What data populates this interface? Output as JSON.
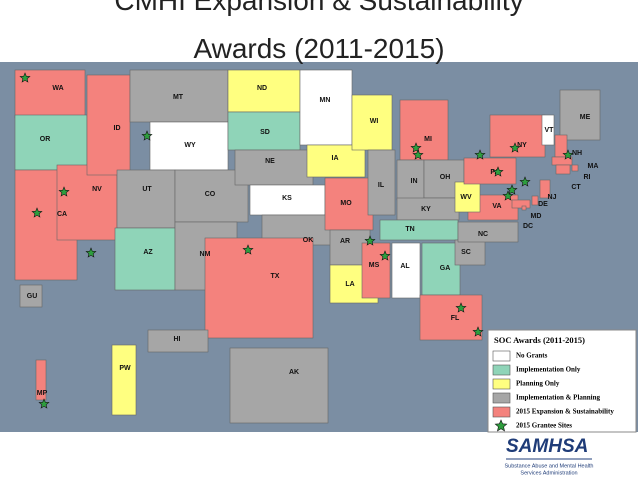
{
  "title": {
    "line1": "CMHI Expansion & Sustainability",
    "line2": "Awards (2011-2015)"
  },
  "map": {
    "background": "#7b8ea3",
    "states": [
      {
        "label": "WA",
        "color": "#f4827d"
      },
      {
        "label": "OR",
        "color": "#8fd4b8"
      },
      {
        "label": "CA",
        "color": "#f4827d"
      },
      {
        "label": "NV",
        "color": "#f4827d"
      },
      {
        "label": "ID",
        "color": "#f4827d"
      },
      {
        "label": "MT",
        "color": "#a6a6a6"
      },
      {
        "label": "WY",
        "color": "#ffffff"
      },
      {
        "label": "UT",
        "color": "#a6a6a6"
      },
      {
        "label": "CO",
        "color": "#a6a6a6"
      },
      {
        "label": "AZ",
        "color": "#8fd4b8"
      },
      {
        "label": "NM",
        "color": "#a6a6a6"
      },
      {
        "label": "ND",
        "color": "#ffff80"
      },
      {
        "label": "SD",
        "color": "#8fd4b8"
      },
      {
        "label": "NE",
        "color": "#a6a6a6"
      },
      {
        "label": "KS",
        "color": "#ffffff"
      },
      {
        "label": "OK",
        "color": "#a6a6a6"
      },
      {
        "label": "TX",
        "color": "#f4827d"
      },
      {
        "label": "MN",
        "color": "#ffffff"
      },
      {
        "label": "IA",
        "color": "#ffff80"
      },
      {
        "label": "MO",
        "color": "#f4827d"
      },
      {
        "label": "AR",
        "color": "#a6a6a6"
      },
      {
        "label": "LA",
        "color": "#ffff80"
      },
      {
        "label": "WI",
        "color": "#ffff80"
      },
      {
        "label": "IL",
        "color": "#a6a6a6"
      },
      {
        "label": "MI",
        "color": "#f4827d"
      },
      {
        "label": "IN",
        "color": "#a6a6a6"
      },
      {
        "label": "OH",
        "color": "#a6a6a6"
      },
      {
        "label": "KY",
        "color": "#a6a6a6"
      },
      {
        "label": "TN",
        "color": "#8fd4b8"
      },
      {
        "label": "MS",
        "color": "#f4827d"
      },
      {
        "label": "AL",
        "color": "#ffffff"
      },
      {
        "label": "GA",
        "color": "#8fd4b8"
      },
      {
        "label": "FL",
        "color": "#f4827d"
      },
      {
        "label": "SC",
        "color": "#a6a6a6"
      },
      {
        "label": "NC",
        "color": "#a6a6a6"
      },
      {
        "label": "VA",
        "color": "#f4827d"
      },
      {
        "label": "WV",
        "color": "#ffff80"
      },
      {
        "label": "PA",
        "color": "#f4827d"
      },
      {
        "label": "NY",
        "color": "#f4827d"
      },
      {
        "label": "ME",
        "color": "#a6a6a6"
      },
      {
        "label": "VT",
        "color": "#ffffff"
      },
      {
        "label": "NH",
        "color": "#f4827d"
      },
      {
        "label": "MA",
        "color": "#f4827d"
      },
      {
        "label": "RI",
        "color": "#f4827d"
      },
      {
        "label": "CT",
        "color": "#f4827d"
      },
      {
        "label": "NJ",
        "color": "#f4827d"
      },
      {
        "label": "DE",
        "color": "#f4827d"
      },
      {
        "label": "MD",
        "color": "#f4827d"
      },
      {
        "label": "DC",
        "color": "#f4827d"
      },
      {
        "label": "AK",
        "color": "#a6a6a6"
      },
      {
        "label": "HI",
        "color": "#a6a6a6"
      },
      {
        "label": "GU",
        "color": "#a6a6a6"
      },
      {
        "label": "PW",
        "color": "#ffff80"
      },
      {
        "label": "MP",
        "color": "#f4827d"
      }
    ]
  },
  "legend": {
    "title": "SOC Awards (2011-2015)",
    "items": [
      {
        "label": "No Grants",
        "color": "#ffffff"
      },
      {
        "label": "Implementation Only",
        "color": "#8fd4b8"
      },
      {
        "label": "Planning Only",
        "color": "#ffff80"
      },
      {
        "label": "Implementation & Planning",
        "color": "#a6a6a6"
      },
      {
        "label": "2015 Expansion & Sustainability",
        "color": "#f4827d"
      },
      {
        "label": "2015 Grantee Sites",
        "color": "#2e9e3e"
      }
    ]
  },
  "logo": {
    "name": "SAMHSA",
    "subtitle_line1": "Substance Abuse and Mental Health",
    "subtitle_line2": "Services Administration"
  }
}
